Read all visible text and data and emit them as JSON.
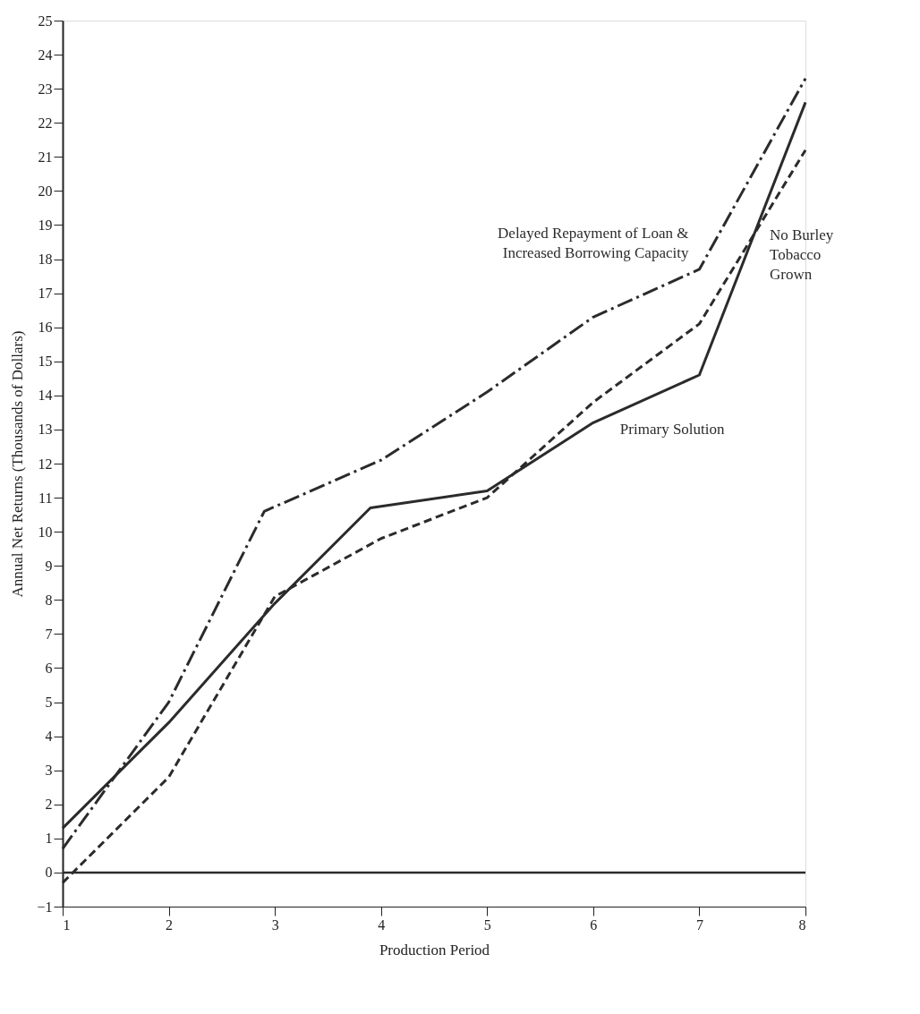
{
  "chart_data": {
    "type": "line",
    "xlabel": "Production Period",
    "ylabel": "Annual Net Returns (Thousands of Dollars)",
    "xlim": [
      1,
      8
    ],
    "xticks": [
      1,
      2,
      3,
      4,
      5,
      6,
      7,
      8
    ],
    "ylim": [
      -1,
      25
    ],
    "yticks": [
      -1,
      0,
      1,
      2,
      3,
      4,
      5,
      6,
      7,
      8,
      9,
      10,
      11,
      12,
      13,
      14,
      15,
      16,
      17,
      18,
      19,
      20,
      21,
      22,
      23,
      24,
      25
    ],
    "grid": false,
    "legend": false,
    "marker": "none",
    "ref_lines": [
      {
        "axis": "y",
        "value": 0,
        "color": "#2b2b2b",
        "line_style": "solid"
      }
    ],
    "series": [
      {
        "name": "Primary Solution",
        "color": "#2b2b2b",
        "line_style": "solid",
        "x": [
          1,
          2,
          3,
          3.9,
          5,
          6,
          7,
          8
        ],
        "values": [
          1.3,
          4.4,
          7.9,
          10.7,
          11.2,
          13.2,
          14.6,
          22.6
        ]
      },
      {
        "name": "No Burley\nTobacco\nGrown",
        "color": "#2b2b2b",
        "line_style": "dashed",
        "x": [
          1,
          2,
          3,
          4,
          5,
          6,
          7,
          8
        ],
        "values": [
          -0.3,
          2.8,
          8.1,
          9.8,
          11.0,
          13.8,
          16.1,
          21.2
        ]
      },
      {
        "name": "Delayed Repayment of Loan &\nIncreased Borrowing Capacity",
        "color": "#2b2b2b",
        "line_style": "dashdot",
        "x": [
          1,
          2,
          2.9,
          4,
          5,
          6,
          7,
          8
        ],
        "values": [
          0.7,
          5.0,
          10.6,
          12.1,
          14.1,
          16.3,
          17.7,
          23.3
        ]
      }
    ]
  }
}
